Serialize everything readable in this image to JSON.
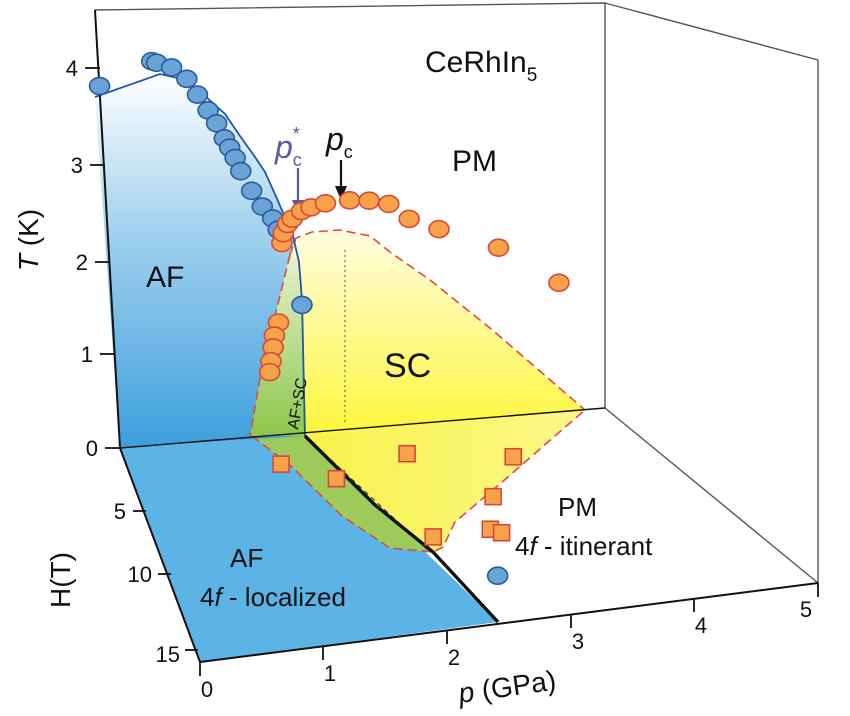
{
  "chart_data": {
    "type": "scatter",
    "title": "CeRhIn",
    "title_subscript": "5",
    "t_axis": {
      "label_var": "T",
      "label_unit": " (K)",
      "range": [
        0,
        4.5
      ],
      "ticks": [
        "0",
        "1",
        "2",
        "3",
        "4"
      ]
    },
    "h_axis": {
      "label": "H(T)",
      "range": [
        0,
        15
      ],
      "ticks": [
        "5",
        "10",
        "15"
      ]
    },
    "p_axis": {
      "label_var": "p",
      "label_unit": " (GPa)",
      "range": [
        0,
        5
      ],
      "ticks": [
        "0",
        "1",
        "2",
        "3",
        "4",
        "5"
      ]
    },
    "pressure_markers": {
      "pc_star": "p",
      "pc_star_sub": "c",
      "pc_star_sup": "*",
      "pc": "p",
      "pc_sub": "c"
    },
    "regions": {
      "af_top": "AF",
      "pm_top": "PM",
      "sc": "SC",
      "af_sc": "AF+SC",
      "af_floor": "AF",
      "af_floor_desc_pre": "4",
      "af_floor_desc_var": "f",
      "af_floor_desc_post": " - localized",
      "pm_floor": "PM",
      "pm_floor_desc_pre": "4",
      "pm_floor_desc_var": "f",
      "pm_floor_desc_post": " - itinerant"
    },
    "series": [
      {
        "kind": "T_N",
        "color": "#6aa3d6",
        "points": [
          [
            0.0,
            3.72
          ],
          [
            0.55,
            3.93
          ],
          [
            0.6,
            3.91
          ],
          [
            0.75,
            3.85
          ],
          [
            0.9,
            3.72
          ],
          [
            1.0,
            3.55
          ],
          [
            1.1,
            3.38
          ],
          [
            1.18,
            3.24
          ],
          [
            1.25,
            3.08
          ],
          [
            1.3,
            2.98
          ],
          [
            1.35,
            2.87
          ],
          [
            1.4,
            2.73
          ],
          [
            1.5,
            2.52
          ],
          [
            1.6,
            2.35
          ],
          [
            1.7,
            2.22
          ],
          [
            1.75,
            2.1
          ],
          [
            1.95,
            1.31
          ]
        ]
      },
      {
        "kind": "T_c",
        "color": "#f5a24a",
        "points": [
          [
            1.78,
            1.96
          ],
          [
            1.8,
            2.06
          ],
          [
            1.85,
            2.15
          ],
          [
            1.9,
            2.2
          ],
          [
            2.0,
            2.27
          ],
          [
            2.1,
            2.3
          ],
          [
            2.25,
            2.33
          ],
          [
            2.5,
            2.34
          ],
          [
            2.7,
            2.32
          ],
          [
            2.9,
            2.27
          ],
          [
            3.1,
            2.1
          ],
          [
            3.4,
            1.97
          ],
          [
            4.0,
            1.73
          ],
          [
            4.6,
            1.32
          ],
          [
            1.7,
            1.15
          ],
          [
            1.65,
            1.02
          ],
          [
            1.63,
            0.9
          ],
          [
            1.6,
            0.76
          ],
          [
            1.58,
            0.65
          ]
        ]
      },
      {
        "kind": "Hc2",
        "color": "#f5a24a",
        "points": [
          [
            1.55,
            2.0
          ],
          [
            2.05,
            3.3
          ],
          [
            2.85,
            2.0
          ],
          [
            3.9,
            2.8
          ],
          [
            3.55,
            5.4
          ],
          [
            3.4,
            7.6
          ],
          [
            3.5,
            7.9
          ],
          [
            2.8,
            7.8
          ]
        ]
      },
      {
        "kind": "H_end",
        "color": "#6aa3d6",
        "points": [
          [
            3.3,
            10.8
          ]
        ]
      }
    ]
  }
}
